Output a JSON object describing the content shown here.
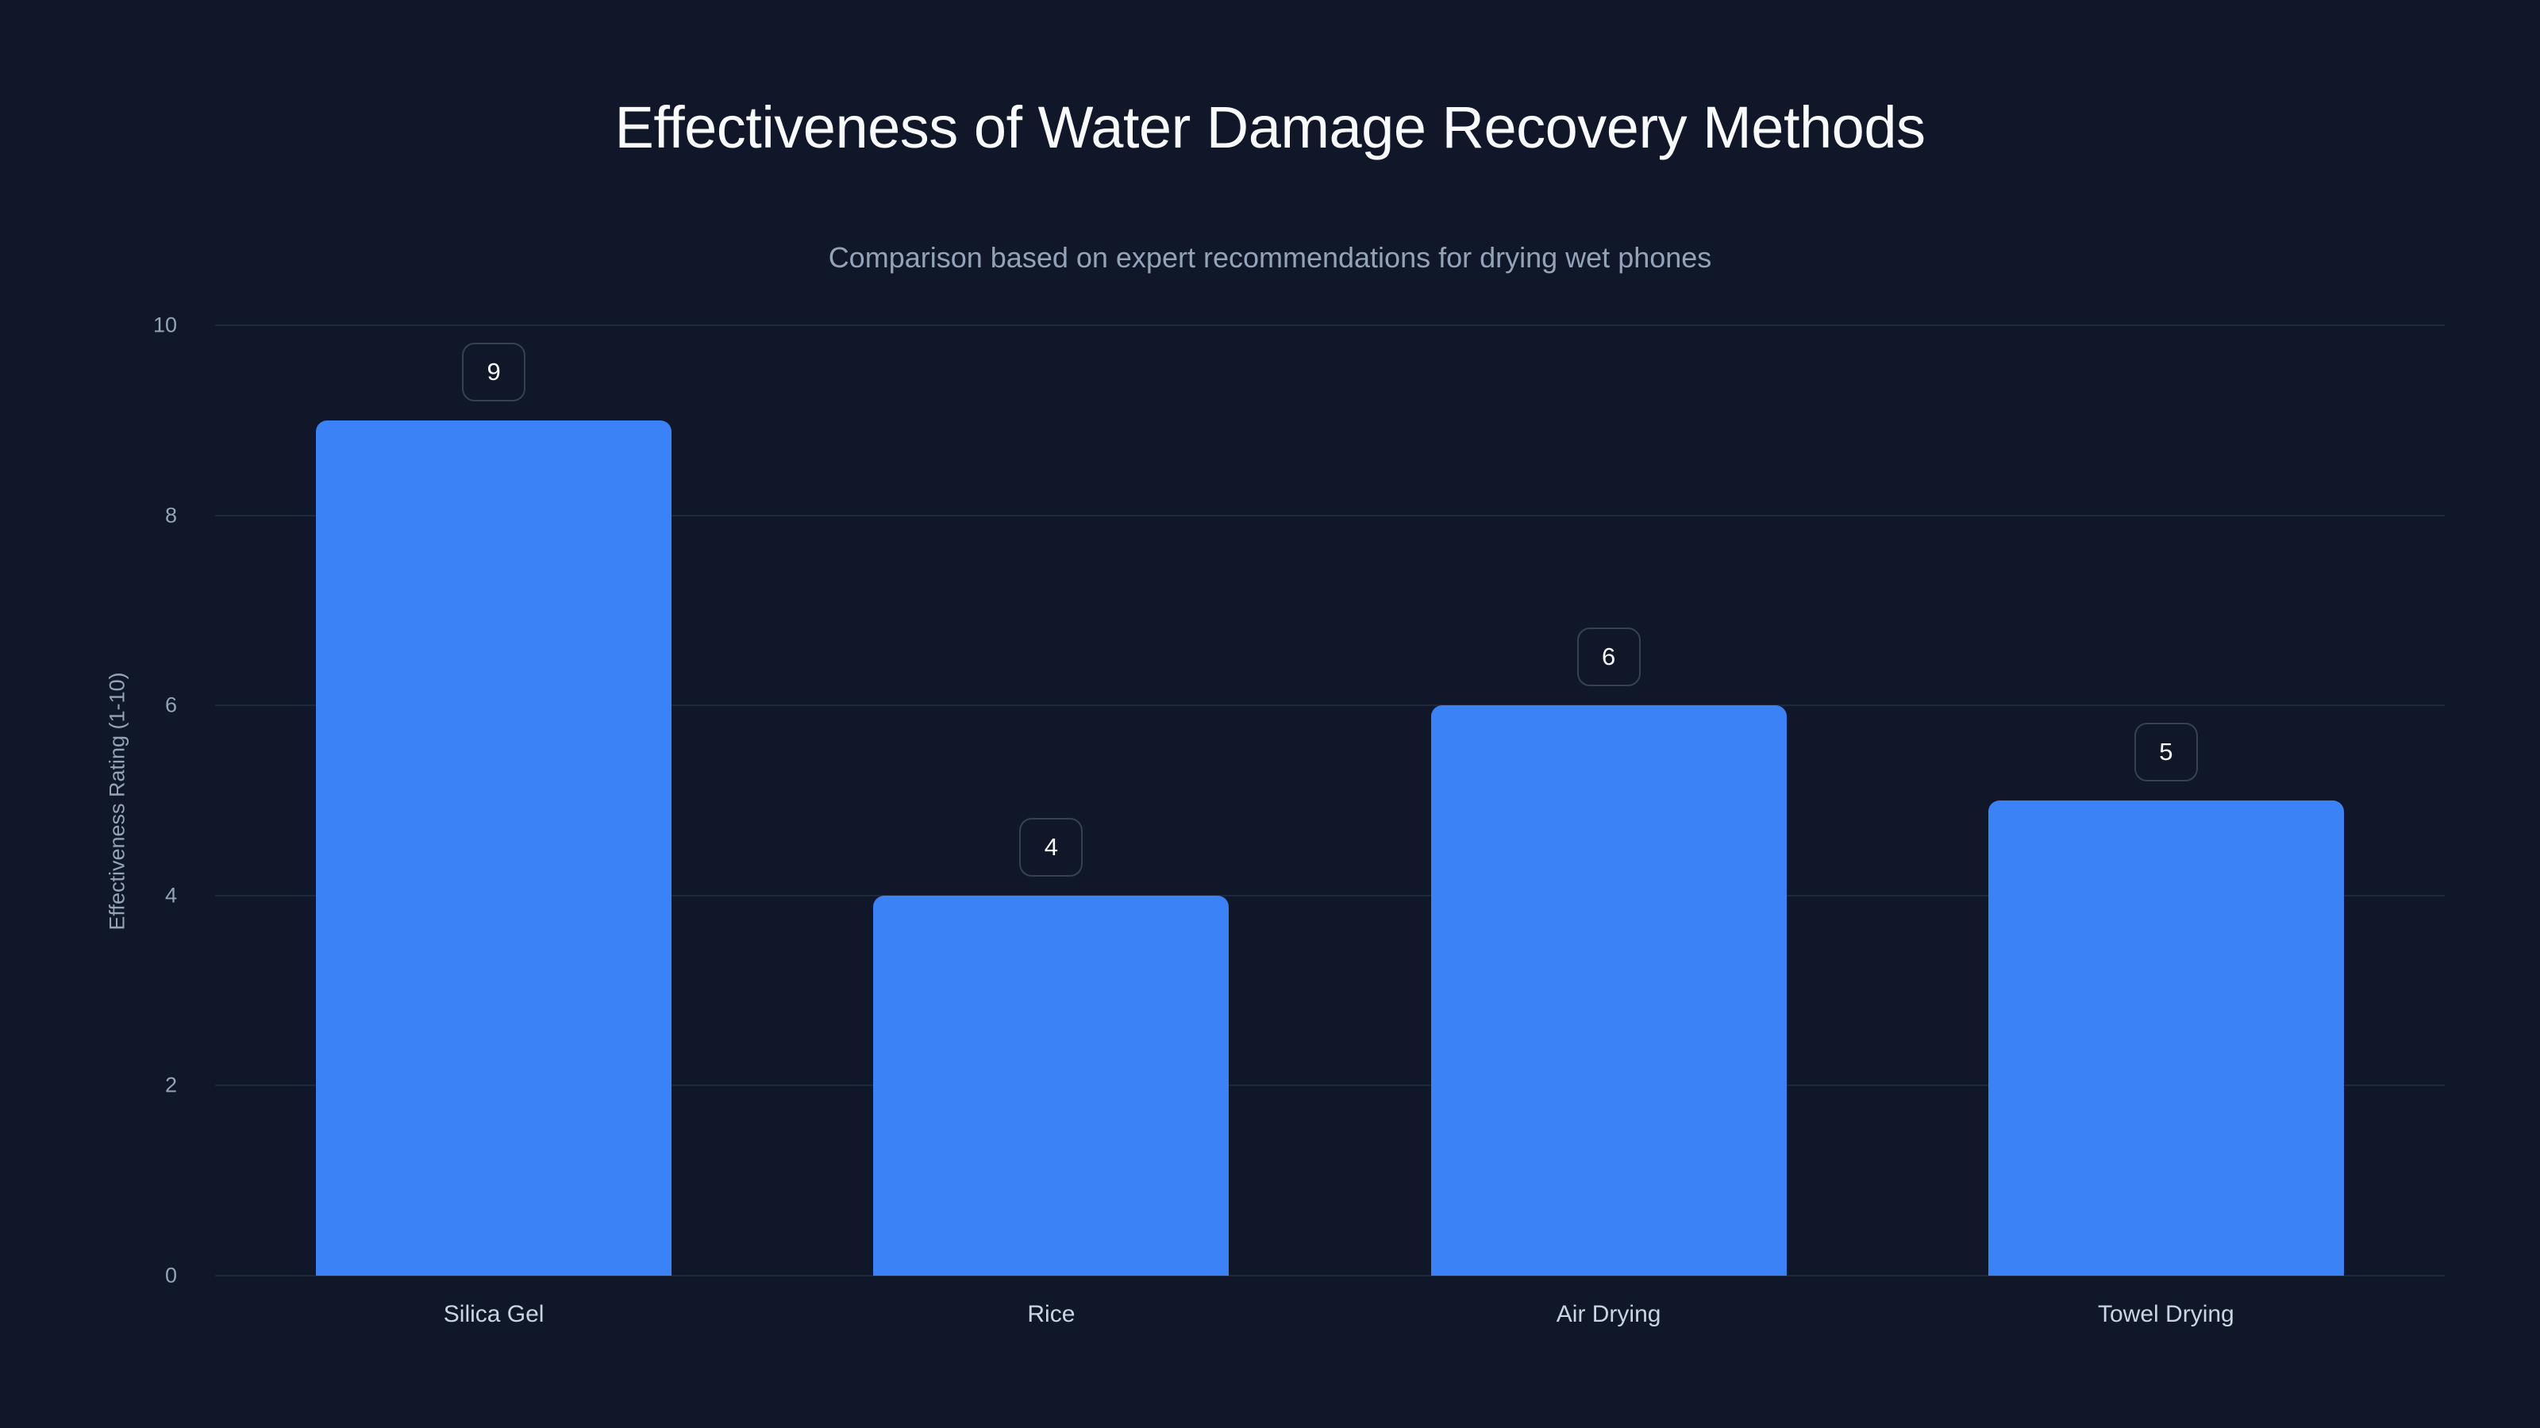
{
  "chart_data": {
    "type": "bar",
    "title": "Effectiveness of Water Damage Recovery Methods",
    "subtitle": "Comparison based on expert recommendations for drying wet phones",
    "xlabel": "",
    "ylabel": "Effectiveness Rating (1-10)",
    "categories": [
      "Silica Gel",
      "Rice",
      "Air Drying",
      "Towel Drying"
    ],
    "values": [
      9,
      4,
      6,
      5
    ],
    "data_labels": [
      "9",
      "4",
      "6",
      "5"
    ],
    "ylim": [
      0,
      10
    ],
    "yticks": [
      "0",
      "2",
      "4",
      "6",
      "8",
      "10"
    ],
    "grid": true,
    "legend": null,
    "colors": {
      "background": "#0f1729",
      "bar": "#3b82f6",
      "gridline": "#1e293b",
      "title": "#f8fafc",
      "subtitle": "#94a3b8",
      "tick_label": "#94a3b8",
      "category_label": "#cbd5e1",
      "badge_border": "#374151"
    }
  }
}
